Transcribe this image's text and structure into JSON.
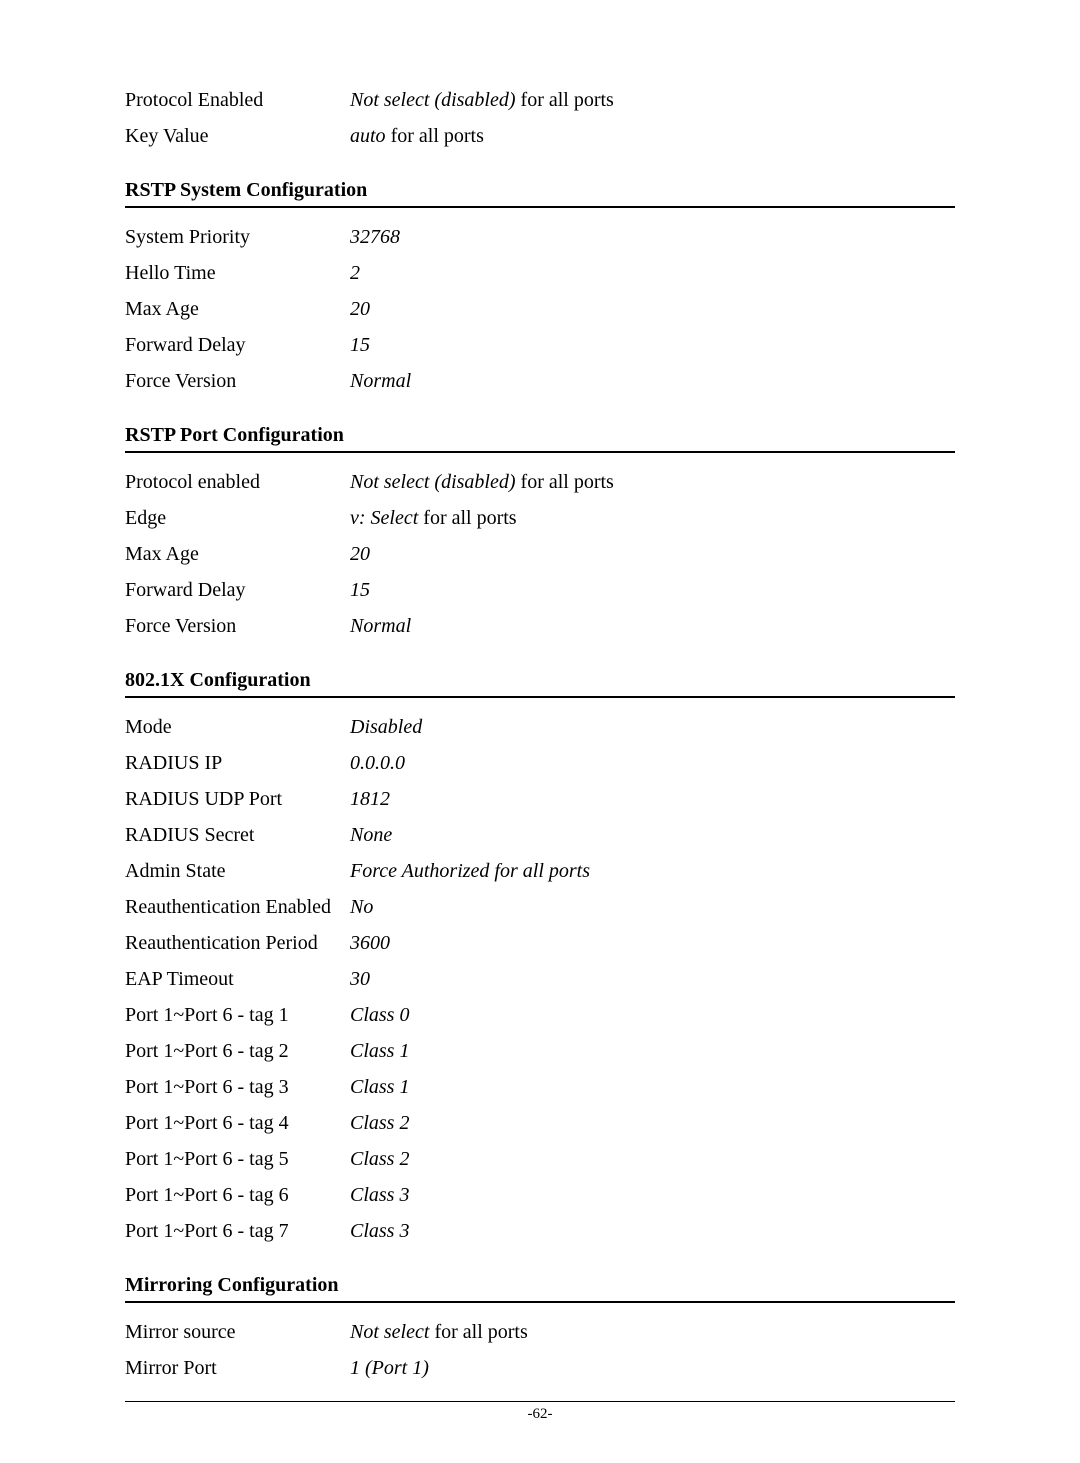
{
  "top_rows": [
    {
      "label": "Protocol Enabled",
      "value_italic": "Not select (disabled)",
      "value_rest": " for all ports"
    },
    {
      "label": "Key Value",
      "value_italic": "auto",
      "value_rest": " for all ports"
    }
  ],
  "sections": [
    {
      "title": "RSTP System Configuration",
      "rows": [
        {
          "label": "System Priority",
          "value_italic": "32768",
          "value_rest": ""
        },
        {
          "label": "Hello Time",
          "value_italic": "2",
          "value_rest": ""
        },
        {
          "label": "Max Age",
          "value_italic": "20",
          "value_rest": ""
        },
        {
          "label": "Forward Delay",
          "value_italic": "15",
          "value_rest": ""
        },
        {
          "label": "Force Version",
          "value_italic": "Normal",
          "value_rest": ""
        }
      ]
    },
    {
      "title": "RSTP Port Configuration",
      "rows": [
        {
          "label": "Protocol enabled",
          "value_italic": "Not select (disabled)",
          "value_rest": " for all ports"
        },
        {
          "label": "Edge",
          "value_italic": "v: Select",
          "value_rest": " for all ports"
        },
        {
          "label": "Max Age",
          "value_italic": "20",
          "value_rest": ""
        },
        {
          "label": "Forward Delay",
          "value_italic": "15",
          "value_rest": ""
        },
        {
          "label": "Force Version",
          "value_italic": "Normal",
          "value_rest": ""
        }
      ]
    },
    {
      "title": "802.1X Configuration",
      "rows": [
        {
          "label": "Mode",
          "value_italic": "Disabled",
          "value_rest": ""
        },
        {
          "label": "RADIUS IP",
          "value_italic": "0.0.0.0",
          "value_rest": ""
        },
        {
          "label": "RADIUS UDP Port",
          "value_italic": "1812",
          "value_rest": ""
        },
        {
          "label": "RADIUS Secret",
          "value_italic": "None",
          "value_rest": ""
        },
        {
          "label": "Admin State",
          "value_italic": "Force Authorized for all ports",
          "value_rest": ""
        },
        {
          "label": "Reauthentication Enabled",
          "value_italic": "No",
          "value_rest": ""
        },
        {
          "label": "Reauthentication Period",
          "value_italic": "3600",
          "value_rest": ""
        },
        {
          "label": "EAP Timeout",
          "value_italic": "30",
          "value_rest": ""
        },
        {
          "label": "Port 1~Port 6 - tag 1",
          "value_italic": "Class 0",
          "value_rest": ""
        },
        {
          "label": "Port 1~Port 6 - tag 2",
          "value_italic": "Class 1",
          "value_rest": ""
        },
        {
          "label": "Port 1~Port 6 - tag 3",
          "value_italic": "Class 1",
          "value_rest": ""
        },
        {
          "label": "Port 1~Port 6 - tag 4",
          "value_italic": "Class 2",
          "value_rest": ""
        },
        {
          "label": "Port 1~Port 6 - tag 5",
          "value_italic": "Class 2",
          "value_rest": ""
        },
        {
          "label": "Port 1~Port 6 - tag 6",
          "value_italic": "Class 3",
          "value_rest": ""
        },
        {
          "label": "Port 1~Port 6 - tag 7",
          "value_italic": "Class 3",
          "value_rest": ""
        }
      ]
    },
    {
      "title": "Mirroring Configuration",
      "rows": [
        {
          "label": "Mirror source",
          "value_italic": "Not select",
          "value_rest": " for all ports"
        },
        {
          "label": "Mirror Port",
          "value_italic": "1 (Port 1)",
          "value_rest": ""
        }
      ]
    }
  ],
  "page_number": "-62-"
}
